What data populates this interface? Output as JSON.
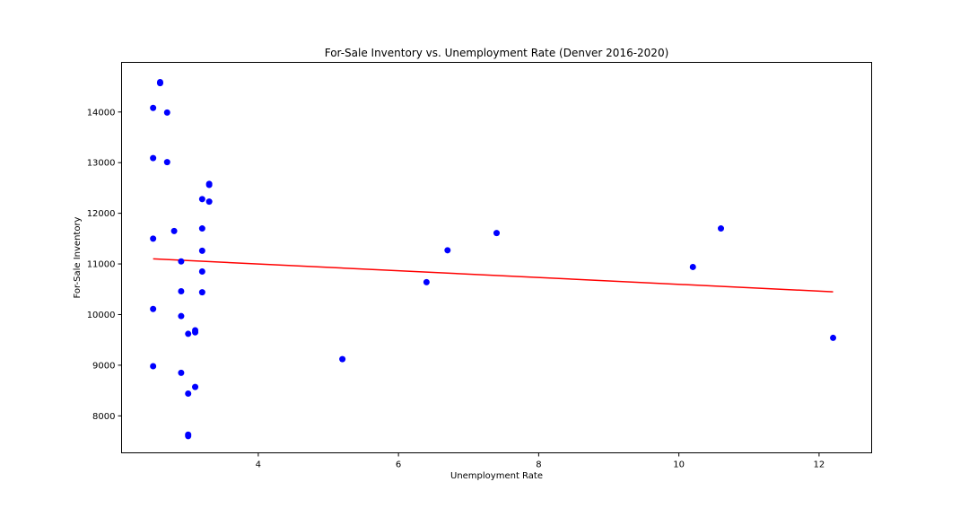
{
  "chart_data": {
    "type": "scatter",
    "title": "For-Sale Inventory vs. Unemployment Rate (Denver 2016-2020)",
    "xlabel": "Unemployment Rate",
    "ylabel": "For-Sale Inventory",
    "xlim": [
      2.05,
      12.75
    ],
    "ylim": [
      7270,
      14980
    ],
    "xticks": [
      4,
      6,
      8,
      10,
      12
    ],
    "yticks": [
      8000,
      9000,
      10000,
      11000,
      12000,
      13000,
      14000
    ],
    "grid": false,
    "marker_color": "#0000ff",
    "line_color": "#ff0000",
    "points": [
      {
        "x": 2.6,
        "y": 14590
      },
      {
        "x": 2.6,
        "y": 14570
      },
      {
        "x": 2.5,
        "y": 14080
      },
      {
        "x": 2.7,
        "y": 13990
      },
      {
        "x": 2.5,
        "y": 13090
      },
      {
        "x": 2.7,
        "y": 13010
      },
      {
        "x": 3.3,
        "y": 12580
      },
      {
        "x": 3.3,
        "y": 12560
      },
      {
        "x": 3.2,
        "y": 12280
      },
      {
        "x": 3.3,
        "y": 12230
      },
      {
        "x": 3.2,
        "y": 11700
      },
      {
        "x": 2.8,
        "y": 11650
      },
      {
        "x": 2.5,
        "y": 11500
      },
      {
        "x": 3.2,
        "y": 11260
      },
      {
        "x": 2.9,
        "y": 11050
      },
      {
        "x": 3.2,
        "y": 10850
      },
      {
        "x": 2.9,
        "y": 10460
      },
      {
        "x": 3.2,
        "y": 10440
      },
      {
        "x": 2.5,
        "y": 10110
      },
      {
        "x": 2.9,
        "y": 9970
      },
      {
        "x": 3.1,
        "y": 9690
      },
      {
        "x": 3.1,
        "y": 9650
      },
      {
        "x": 3.0,
        "y": 9620
      },
      {
        "x": 2.5,
        "y": 8980
      },
      {
        "x": 2.9,
        "y": 8850
      },
      {
        "x": 3.1,
        "y": 8570
      },
      {
        "x": 3.0,
        "y": 8440
      },
      {
        "x": 3.0,
        "y": 7630
      },
      {
        "x": 3.0,
        "y": 7600
      },
      {
        "x": 5.2,
        "y": 9120
      },
      {
        "x": 6.4,
        "y": 10640
      },
      {
        "x": 6.7,
        "y": 11270
      },
      {
        "x": 7.4,
        "y": 11610
      },
      {
        "x": 10.2,
        "y": 10940
      },
      {
        "x": 10.6,
        "y": 11700
      },
      {
        "x": 12.2,
        "y": 9540
      }
    ],
    "trendline": {
      "x": [
        2.5,
        12.2
      ],
      "y": [
        11100,
        10450
      ]
    }
  }
}
